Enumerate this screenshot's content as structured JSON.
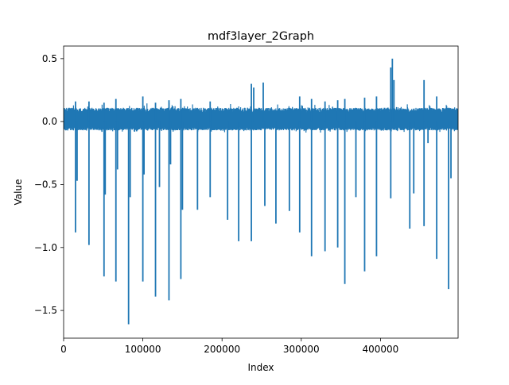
{
  "chart_data": {
    "type": "line",
    "title": "mdf3layer_2Graph",
    "xlabel": "Index",
    "ylabel": "Value",
    "xlim": [
      0,
      498000
    ],
    "ylim": [
      -1.72,
      0.6
    ],
    "x_ticks": [
      0,
      100000,
      200000,
      300000,
      400000
    ],
    "x_tick_labels": [
      "0",
      "100000",
      "200000",
      "300000",
      "400000"
    ],
    "y_ticks": [
      -1.5,
      -1.0,
      -0.5,
      0.0,
      0.5
    ],
    "y_tick_labels": [
      "−1.5",
      "−1.0",
      "−0.5",
      "0.0",
      "0.5"
    ],
    "grid": false,
    "color": "#1f77b4",
    "series": [
      {
        "baseband": {
          "x_start": 0,
          "x_end": 498000,
          "y_min": -0.07,
          "y_max": 0.11
        },
        "spikes_down": [
          [
            15000,
            -0.88
          ],
          [
            17000,
            -0.47
          ],
          [
            32000,
            -0.98
          ],
          [
            51000,
            -1.23
          ],
          [
            52500,
            -0.58
          ],
          [
            66000,
            -1.27
          ],
          [
            68000,
            -0.38
          ],
          [
            82000,
            -1.61
          ],
          [
            84000,
            -0.6
          ],
          [
            100000,
            -1.27
          ],
          [
            101500,
            -0.42
          ],
          [
            116000,
            -1.39
          ],
          [
            121000,
            -0.52
          ],
          [
            133000,
            -1.42
          ],
          [
            135000,
            -0.34
          ],
          [
            148000,
            -1.25
          ],
          [
            150000,
            -0.7
          ],
          [
            169000,
            -0.7
          ],
          [
            185000,
            -0.6
          ],
          [
            207000,
            -0.78
          ],
          [
            221000,
            -0.95
          ],
          [
            237000,
            -0.95
          ],
          [
            254000,
            -0.67
          ],
          [
            268000,
            -0.81
          ],
          [
            285000,
            -0.71
          ],
          [
            298000,
            -0.88
          ],
          [
            313000,
            -1.07
          ],
          [
            330000,
            -1.03
          ],
          [
            346000,
            -1.0
          ],
          [
            355000,
            -1.29
          ],
          [
            369000,
            -0.6
          ],
          [
            380000,
            -1.19
          ],
          [
            395000,
            -1.07
          ],
          [
            413000,
            -0.61
          ],
          [
            437000,
            -0.85
          ],
          [
            442000,
            -0.57
          ],
          [
            455000,
            -0.83
          ],
          [
            460000,
            -0.17
          ],
          [
            471000,
            -1.09
          ],
          [
            486000,
            -1.33
          ],
          [
            489000,
            -0.45
          ]
        ],
        "spikes_up": [
          [
            15000,
            0.16
          ],
          [
            32000,
            0.16
          ],
          [
            51000,
            0.15
          ],
          [
            66000,
            0.18
          ],
          [
            100000,
            0.2
          ],
          [
            116000,
            0.15
          ],
          [
            133000,
            0.17
          ],
          [
            148000,
            0.18
          ],
          [
            185000,
            0.16
          ],
          [
            237000,
            0.3
          ],
          [
            240000,
            0.27
          ],
          [
            252000,
            0.31
          ],
          [
            298000,
            0.2
          ],
          [
            313000,
            0.18
          ],
          [
            330000,
            0.16
          ],
          [
            346000,
            0.17
          ],
          [
            355000,
            0.18
          ],
          [
            380000,
            0.19
          ],
          [
            395000,
            0.2
          ],
          [
            413000,
            0.43
          ],
          [
            415000,
            0.5
          ],
          [
            417000,
            0.33
          ],
          [
            455000,
            0.33
          ],
          [
            471000,
            0.2
          ]
        ]
      }
    ]
  }
}
